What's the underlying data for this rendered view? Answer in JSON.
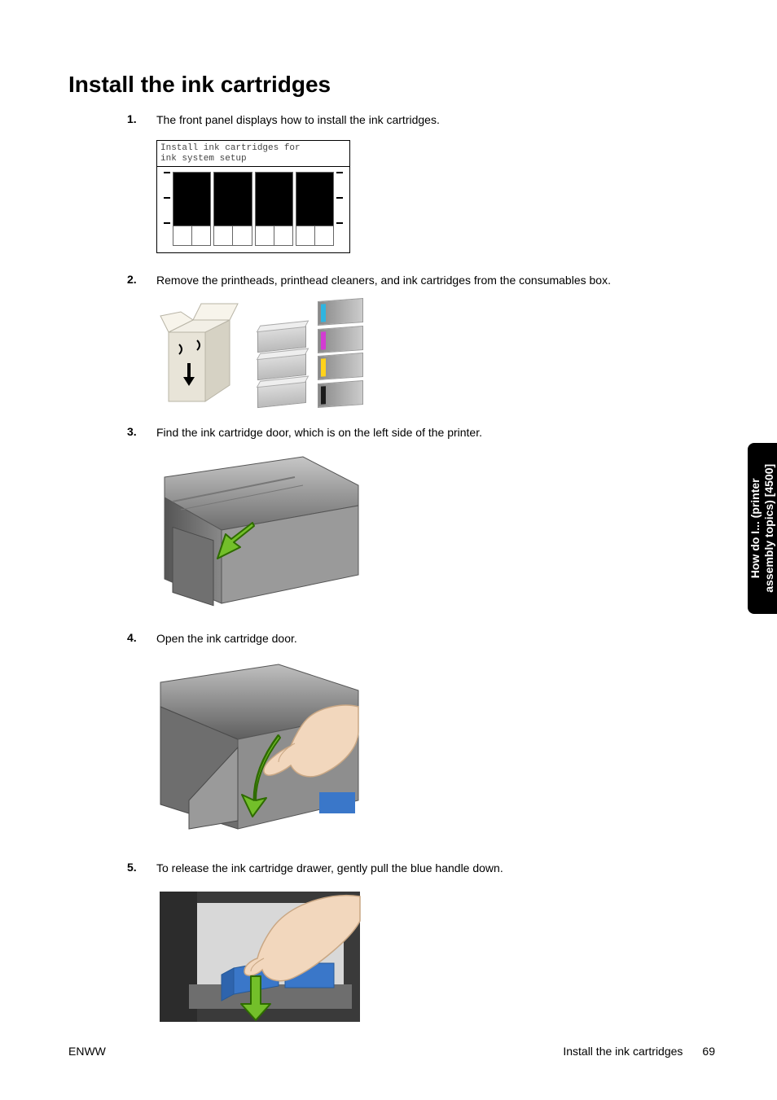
{
  "title": "Install the ink cartridges",
  "steps": [
    {
      "num": "1.",
      "text": "The front panel displays how to install the ink cartridges."
    },
    {
      "num": "2.",
      "text": "Remove the printheads, printhead cleaners, and ink cartridges from the consumables box."
    },
    {
      "num": "3.",
      "text": "Find the ink cartridge door, which is on the left side of the printer."
    },
    {
      "num": "4.",
      "text": "Open the ink cartridge door."
    },
    {
      "num": "5.",
      "text": "To release the ink cartridge drawer, gently pull the blue handle down."
    }
  ],
  "lcd_line1": "Install ink cartridges for",
  "lcd_line2": "ink system setup",
  "cartridge_stripe_colors": [
    "#2fb4e0",
    "#d23cd2",
    "#ffd21a",
    "#1a1a1a"
  ],
  "side_tab_line1": "How do I... (printer",
  "side_tab_line2": "assembly topics) [4500]",
  "footer_left": "ENWW",
  "footer_right_text": "Install the ink cartridges",
  "footer_page": "69",
  "colors": {
    "arrow_green": "#73bf2a",
    "arrow_stroke": "#2e6b00",
    "hand_fill": "#f2d7bd",
    "hand_stroke": "#c9a784",
    "printer_dark": "#6e6e6e",
    "printer_mid": "#9a9a9a",
    "printer_light": "#c6c6c6",
    "blue_handle": "#3a77c9",
    "box_fill": "#e8e4d8",
    "box_stroke": "#b8b4a6"
  }
}
